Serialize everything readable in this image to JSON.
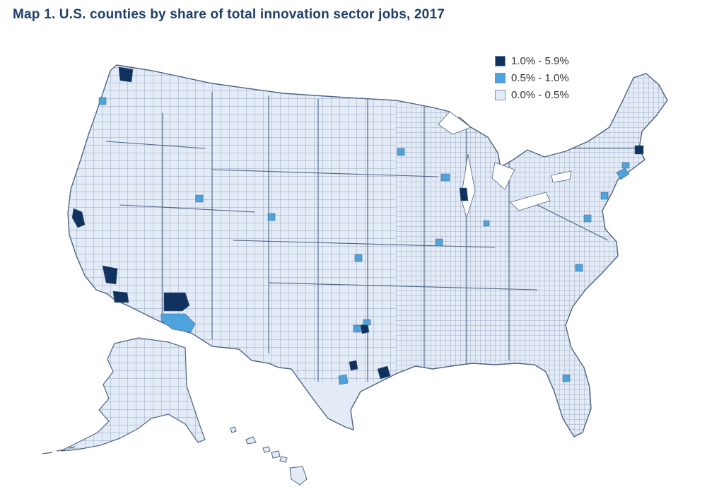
{
  "title": "Map 1. U.S. counties by share of total innovation sector jobs, 2017",
  "colors": {
    "high": "#0f325f",
    "mid": "#4ea3dc",
    "low": "#e3ebf7",
    "border": "#4e6385",
    "title": "#1f3f6b"
  },
  "legend": [
    {
      "label": "1.0% - 5.9%",
      "color": "#0f325f"
    },
    {
      "label": "0.5% - 1.0%",
      "color": "#4ea3dc"
    },
    {
      "label": "0.0% - 0.5%",
      "color": "#e3ebf7"
    }
  ],
  "regions": {
    "high_share": [
      "seattle-area",
      "bay-area",
      "los-angeles-area",
      "san-diego-area",
      "phoenix-area",
      "chicago-area",
      "boston-area",
      "austin-area",
      "houston-area",
      "dallas-area"
    ],
    "mid_share": [
      "portland-area",
      "boise-area",
      "salt-lake-area",
      "minneapolis-area",
      "madison-area",
      "kansas-area",
      "fort-worth-area",
      "san-antonio-area",
      "tucson-area",
      "indianapolis-area",
      "washington-area",
      "philadelphia-area",
      "new-york-area",
      "raleigh-area",
      "orlando-area",
      "hartford-area",
      "st-louis-area"
    ]
  }
}
